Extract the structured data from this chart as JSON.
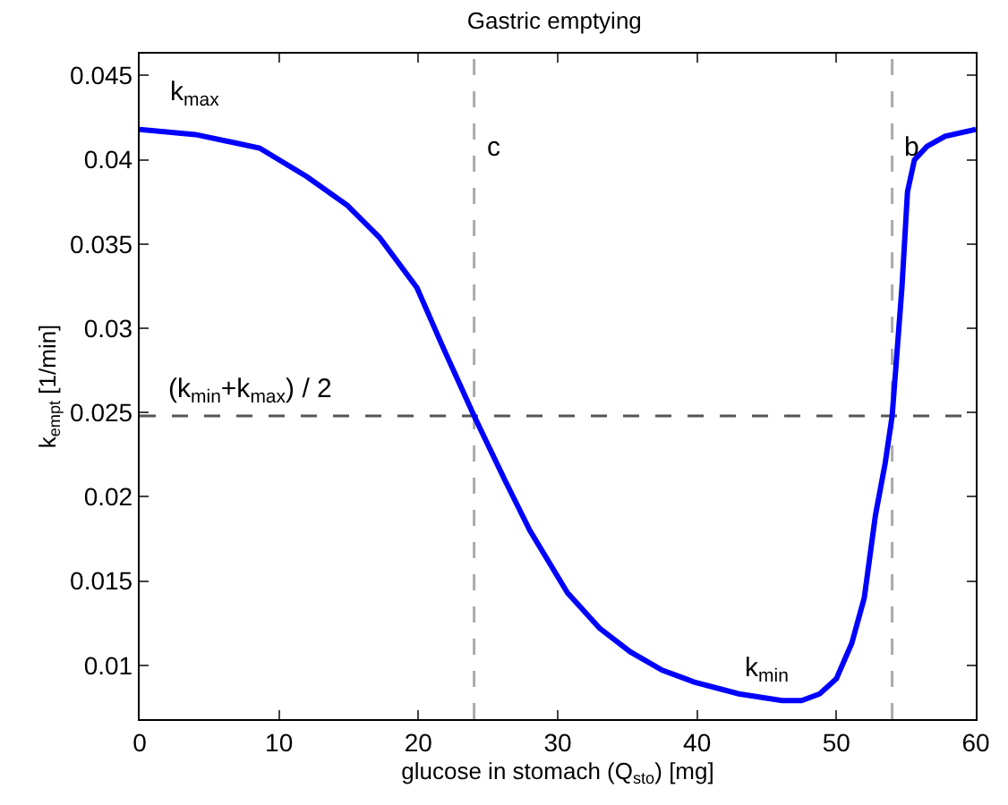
{
  "chart_data": {
    "type": "line",
    "title": "Gastric emptying",
    "xlabel": "glucose in stomach (Q$_{sto}$) [mg]",
    "ylabel": "k$_{empt}$ [1/min]",
    "x": [
      0,
      4,
      8.6,
      12,
      14.9,
      17.2,
      19.9,
      21.7,
      24,
      26.2,
      28,
      30.7,
      33,
      35.2,
      37.5,
      39.8,
      43,
      46.1,
      47.5,
      48.8,
      50,
      51.1,
      52,
      52.8,
      53.5,
      54,
      54.7,
      55.1,
      55.6,
      56.5,
      57.8,
      60
    ],
    "series": [
      {
        "color": "#0000ff",
        "values": [
          0.0418,
          0.0415,
          0.0407,
          0.039,
          0.0373,
          0.0354,
          0.0324,
          0.029,
          0.0248,
          0.021,
          0.018,
          0.0143,
          0.0122,
          0.0108,
          0.0097,
          0.009,
          0.0083,
          0.0079,
          0.0079,
          0.0083,
          0.0092,
          0.0113,
          0.014,
          0.0189,
          0.022,
          0.0248,
          0.0324,
          0.0381,
          0.04,
          0.0408,
          0.0414,
          0.0418
        ]
      }
    ],
    "xlim": [
      0,
      60
    ],
    "xticks": [
      0,
      10,
      20,
      30,
      40,
      50,
      60
    ],
    "ylim": [
      0.0068,
      0.0463
    ],
    "yticks": [
      0.01,
      0.015,
      0.02,
      0.025,
      0.03,
      0.035,
      0.04,
      0.045
    ],
    "ref_lines": [
      {
        "axis": "y",
        "value": 0.0248,
        "label": "(k$_{min}$+k$_{max}$) / 2",
        "color": "#555555",
        "line_style": "dashed"
      },
      {
        "axis": "x",
        "value": 24,
        "label": "c",
        "color": "#aaaaaa",
        "line_style": "dashed"
      },
      {
        "axis": "x",
        "value": 54,
        "label": "b",
        "color": "#aaaaaa",
        "line_style": "dashed"
      }
    ],
    "annotations": [
      {
        "text": "k$_{max}$",
        "x": 4,
        "y": 0.0418
      },
      {
        "text": "k$_{min}$",
        "x": 45,
        "y": 0.0079
      }
    ],
    "grid": false,
    "marker": "none",
    "line_style": "solid"
  }
}
